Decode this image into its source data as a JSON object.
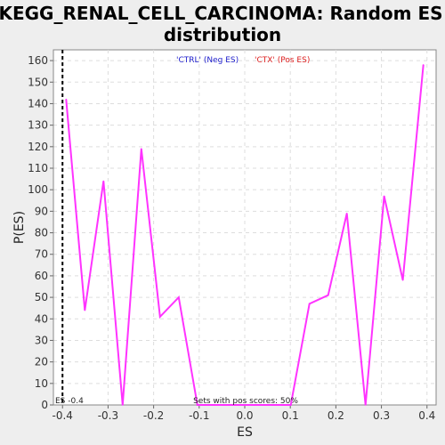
{
  "chart_data": {
    "type": "line",
    "title_line1": "KEGG_RENAL_CELL_CARCINOMA: Random ES",
    "title_line2": "distribution",
    "xlabel": "ES",
    "ylabel": "P(ES)",
    "xlim": [
      -0.42,
      0.42
    ],
    "ylim": [
      0,
      165
    ],
    "xticks": [
      -0.4,
      -0.3,
      -0.2,
      -0.1,
      0.0,
      0.1,
      0.2,
      0.3,
      0.4
    ],
    "xtick_labels": [
      "-0.4",
      "-0.3",
      "-0.2",
      "-0.1",
      "0.0",
      "0.1",
      "0.2",
      "0.3",
      "0.4"
    ],
    "yticks": [
      0,
      10,
      20,
      30,
      40,
      50,
      60,
      70,
      80,
      90,
      100,
      110,
      120,
      130,
      140,
      150,
      160
    ],
    "grid": true,
    "legend": [
      {
        "label": "'CTRL' (Neg ES)",
        "color": "#2020cc"
      },
      {
        "label": "'CTX' (Pos ES)",
        "color": "#dd2020"
      }
    ],
    "legend_placement": "top-center",
    "series": [
      {
        "color": "#ff33ff",
        "x": [
          -0.392,
          -0.351,
          -0.31,
          -0.268,
          -0.227,
          -0.186,
          -0.145,
          -0.104,
          -0.063,
          -0.022,
          0.019,
          0.06,
          0.101,
          0.142,
          0.183,
          0.224,
          0.265,
          0.306,
          0.347,
          0.392
        ],
        "y": [
          142,
          44,
          104,
          0,
          119,
          41,
          50,
          0,
          0,
          0,
          0,
          0,
          0,
          47,
          51,
          89,
          0,
          97,
          58,
          158
        ]
      }
    ],
    "observed_es": -0.4,
    "observed_es_label": "ES -0.4",
    "pos_scores_label": "Sets with pos scores: 50%"
  }
}
